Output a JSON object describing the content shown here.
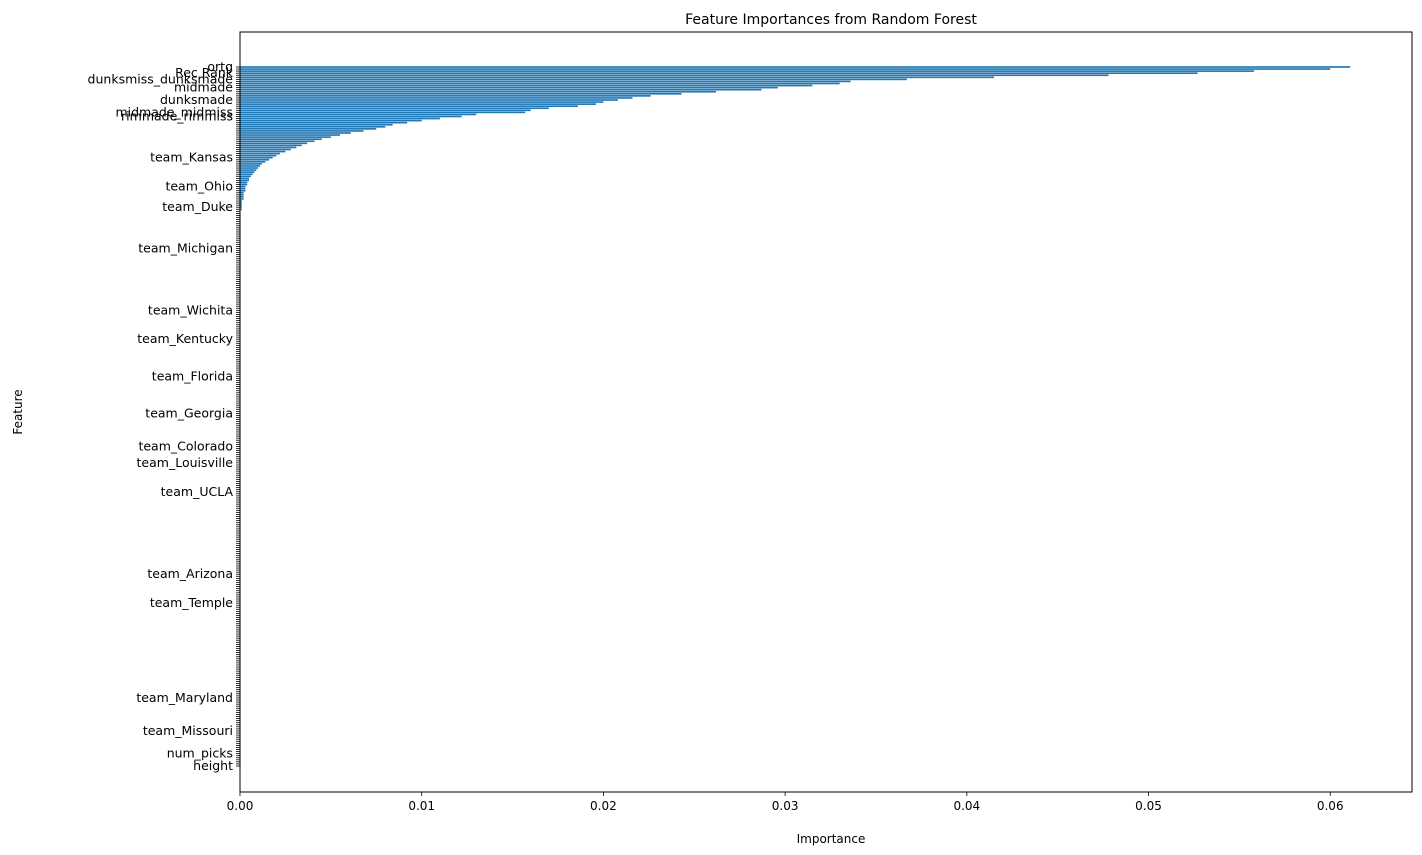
{
  "chart_data": {
    "type": "bar",
    "orientation": "horizontal",
    "title": "Feature Importances from Random Forest",
    "xlabel": "Importance",
    "ylabel": "Feature",
    "xlim": [
      0,
      0.0645
    ],
    "xticks": [
      0,
      0.01,
      0.02,
      0.03,
      0.04,
      0.05,
      0.06
    ],
    "xtick_labels": [
      "0.00",
      "0.01",
      "0.02",
      "0.03",
      "0.04",
      "0.05",
      "0.06"
    ],
    "bar_color": "#1f77b4",
    "grid": false,
    "legend": "none",
    "bar_count": 340,
    "legible_labels": [
      {
        "rank": 0,
        "label": "ortg"
      },
      {
        "rank": 3,
        "label": "Rec Rank"
      },
      {
        "rank": 6,
        "label": "dunksmiss_dunksmade"
      },
      {
        "rank": 10,
        "label": "midmade"
      },
      {
        "rank": 16,
        "label": "dunksmade"
      },
      {
        "rank": 22,
        "label": "midmade_midmiss"
      },
      {
        "rank": 24,
        "label": "rimmade_rimmiss"
      },
      {
        "rank": 44,
        "label": "team_Kansas"
      },
      {
        "rank": 58,
        "label": "team_Ohio"
      },
      {
        "rank": 68,
        "label": "team_Duke"
      },
      {
        "rank": 88,
        "label": "team_Michigan"
      },
      {
        "rank": 118,
        "label": "team_Wichita"
      },
      {
        "rank": 132,
        "label": "team_Kentucky"
      },
      {
        "rank": 150,
        "label": "team_Florida"
      },
      {
        "rank": 168,
        "label": "team_Georgia"
      },
      {
        "rank": 184,
        "label": "team_Colorado"
      },
      {
        "rank": 192,
        "label": "team_Louisville"
      },
      {
        "rank": 206,
        "label": "team_UCLA"
      },
      {
        "rank": 246,
        "label": "team_Arizona"
      },
      {
        "rank": 260,
        "label": "team_Temple"
      },
      {
        "rank": 306,
        "label": "team_Maryland"
      },
      {
        "rank": 322,
        "label": "team_Missouri"
      },
      {
        "rank": 333,
        "label": "num_picks"
      },
      {
        "rank": 339,
        "label": "height"
      }
    ],
    "top_values": [
      0.0611,
      0.06,
      0.0558,
      0.0527,
      0.0478,
      0.0415,
      0.0367,
      0.0336,
      0.033,
      0.0315,
      0.0296,
      0.0287,
      0.0262,
      0.0243,
      0.0226,
      0.0216,
      0.0208,
      0.02,
      0.0196,
      0.0186,
      0.017,
      0.016,
      0.0157,
      0.013,
      0.0122,
      0.011,
      0.01,
      0.0092,
      0.0084,
      0.008,
      0.0075,
      0.0068,
      0.0061,
      0.0055,
      0.005,
      0.0045,
      0.0041,
      0.0037,
      0.0034,
      0.0031,
      0.0028,
      0.0025,
      0.0022,
      0.002,
      0.0018,
      0.0016,
      0.0014,
      0.0012,
      0.0011,
      0.001,
      0.0009,
      0.0008,
      0.0007,
      0.0006,
      0.0005,
      0.0005,
      0.0004,
      0.0004,
      0.0003,
      0.0003,
      0.0003,
      0.0002,
      0.0002,
      0.0002,
      0.0002,
      0.0001,
      0.0001,
      0.0001,
      0.0001,
      0.0001
    ],
    "tail_value": 3e-05
  }
}
